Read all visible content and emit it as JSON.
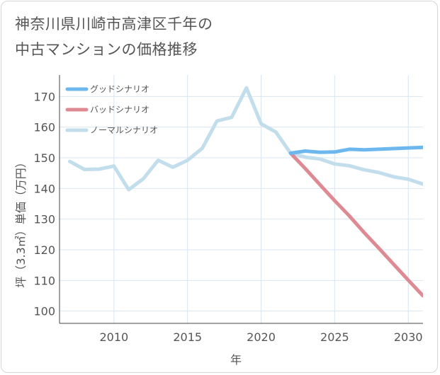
{
  "chart_data": {
    "type": "line",
    "title_lines": [
      "神奈川県川崎市高津区千年の",
      "中古マンションの価格推移"
    ],
    "xlabel": "年",
    "ylabel": "坪（3.3㎡）単価（万円）",
    "xlim": [
      2006.3,
      2031
    ],
    "ylim": [
      96,
      177
    ],
    "x_ticks": [
      2010,
      2015,
      2020,
      2025,
      2030
    ],
    "y_ticks": [
      100,
      110,
      120,
      130,
      140,
      150,
      160,
      170
    ],
    "series": [
      {
        "name": "グッドシナリオ",
        "color": "#6cb8ee",
        "x": [
          2022,
          2023,
          2024,
          2025,
          2026,
          2027,
          2028,
          2029,
          2030,
          2031
        ],
        "values": [
          151.5,
          152.2,
          151.8,
          151.9,
          152.8,
          152.6,
          152.8,
          153.0,
          153.2,
          153.4
        ]
      },
      {
        "name": "バッドシナリオ",
        "color": "#de8a92",
        "x": [
          2022,
          2023,
          2024,
          2025,
          2026,
          2027,
          2028,
          2029,
          2030,
          2031
        ],
        "values": [
          151.5,
          146.5,
          141.2,
          136.0,
          131.0,
          125.6,
          120.5,
          115.3,
          110.1,
          105.0
        ]
      },
      {
        "name": "ノーマルシナリオ",
        "color": "#c2ddeb",
        "x": [
          2007,
          2008,
          2009,
          2010,
          2011,
          2012,
          2013,
          2014,
          2015,
          2016,
          2017,
          2018,
          2019,
          2020,
          2021,
          2022,
          2023,
          2024,
          2025,
          2026,
          2027,
          2028,
          2029,
          2030,
          2031
        ],
        "values": [
          148.8,
          146.2,
          146.3,
          147.3,
          139.6,
          143.2,
          149.2,
          146.9,
          149.2,
          153.1,
          162.0,
          163.2,
          172.8,
          161.1,
          158.4,
          151.5,
          150.2,
          149.6,
          148.0,
          147.4,
          146.1,
          145.2,
          143.8,
          143.0,
          141.4
        ]
      }
    ]
  }
}
